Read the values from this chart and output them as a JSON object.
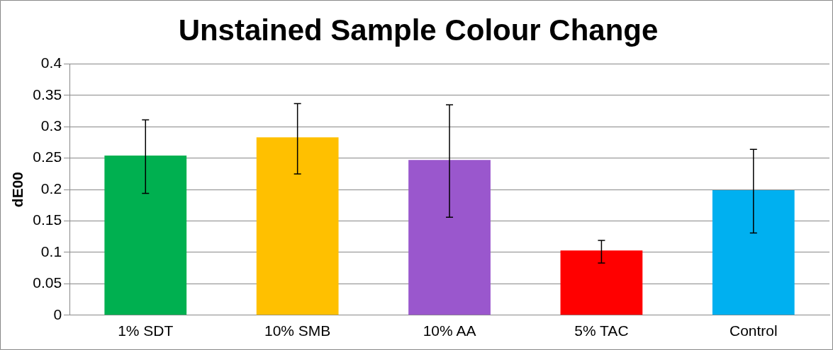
{
  "chart_data": {
    "type": "bar",
    "title": "Unstained Sample Colour Change",
    "ylabel": "dE00",
    "categories": [
      "1% SDT",
      "10% SMB",
      "10% AA",
      "5% TAC",
      "Control"
    ],
    "values": [
      0.254,
      0.283,
      0.247,
      0.103,
      0.199
    ],
    "colors": [
      "#00b050",
      "#ffc000",
      "#9a57cd",
      "#ff0000",
      "#00b0f0"
    ],
    "errors": [
      [
        0.194,
        0.311
      ],
      [
        0.225,
        0.337
      ],
      [
        0.156,
        0.335
      ],
      [
        0.083,
        0.119
      ],
      [
        0.131,
        0.264
      ]
    ],
    "ylim": [
      0,
      0.4
    ],
    "yticks": [
      0,
      0.05,
      0.1,
      0.15,
      0.2,
      0.25,
      0.3,
      0.35,
      0.4
    ],
    "grid": "y",
    "legend": false
  }
}
